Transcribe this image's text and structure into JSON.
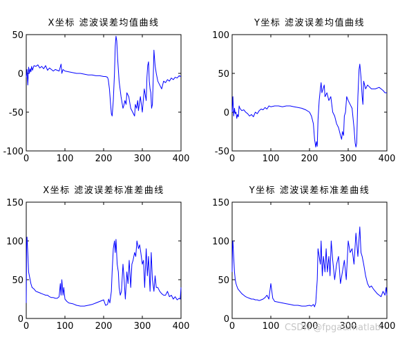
{
  "watermark": "CSDN @fpga&matlab",
  "chart_data": [
    {
      "type": "line",
      "title": "X坐标 滤波误差均值曲线",
      "xlim": [
        0,
        400
      ],
      "ylim": [
        -100,
        50
      ],
      "xticks": [
        "0",
        "100",
        "200",
        "300",
        "400"
      ],
      "yticks": [
        "50",
        "0",
        "-50",
        "-100"
      ],
      "color": "#0000ff",
      "series": [
        {
          "x": [
            0,
            2,
            4,
            6,
            8,
            10,
            12,
            14,
            16,
            20,
            25,
            30,
            35,
            40,
            45,
            50,
            55,
            60,
            65,
            70,
            75,
            80,
            85,
            90,
            92,
            95,
            100,
            110,
            120,
            130,
            140,
            150,
            160,
            170,
            180,
            190,
            200,
            205,
            210,
            212,
            215,
            218,
            220,
            222,
            225,
            228,
            230,
            232,
            234,
            236,
            238,
            240,
            245,
            250,
            252,
            255,
            258,
            260,
            265,
            270,
            275,
            280,
            282,
            285,
            288,
            290,
            295,
            300,
            305,
            310,
            312,
            314,
            316,
            318,
            320,
            322,
            324,
            326,
            328,
            330,
            333,
            336,
            340,
            345,
            350,
            355,
            360,
            365,
            370,
            375,
            380,
            385,
            390,
            395,
            400
          ],
          "y": [
            -5,
            5,
            -15,
            8,
            0,
            6,
            2,
            9,
            4,
            10,
            9,
            11,
            7,
            9,
            6,
            10,
            4,
            7,
            5,
            3,
            5,
            4,
            3,
            12,
            0,
            5,
            3,
            2,
            1,
            0,
            0,
            -1,
            -2,
            -2,
            -3,
            -3,
            -4,
            -4,
            -5,
            -8,
            -20,
            -40,
            -52,
            -55,
            -35,
            0,
            35,
            48,
            42,
            20,
            5,
            -10,
            -30,
            -45,
            -42,
            -35,
            -40,
            -25,
            -30,
            -45,
            -50,
            -55,
            -40,
            -45,
            -35,
            -48,
            -30,
            -50,
            -20,
            -35,
            -5,
            10,
            15,
            -10,
            -20,
            -25,
            -45,
            -40,
            -10,
            30,
            10,
            0,
            -10,
            -15,
            -20,
            -10,
            -12,
            -8,
            -10,
            -6,
            -8,
            -5,
            -6,
            -3,
            -4
          ]
        }
      ]
    },
    {
      "type": "line",
      "title": "Y坐标 滤波误差均值曲线",
      "xlim": [
        0,
        400
      ],
      "ylim": [
        -50,
        100
      ],
      "xticks": [
        "0",
        "100",
        "200",
        "300",
        "400"
      ],
      "yticks": [
        "100",
        "50",
        "0",
        "-50"
      ],
      "color": "#0000ff",
      "series": [
        {
          "x": [
            0,
            2,
            4,
            6,
            8,
            10,
            12,
            14,
            16,
            18,
            20,
            25,
            30,
            35,
            40,
            45,
            50,
            55,
            60,
            65,
            70,
            75,
            80,
            85,
            90,
            95,
            100,
            110,
            120,
            130,
            140,
            150,
            160,
            170,
            180,
            190,
            200,
            205,
            210,
            213,
            216,
            218,
            220,
            222,
            225,
            228,
            230,
            232,
            235,
            238,
            240,
            245,
            250,
            255,
            260,
            265,
            270,
            275,
            280,
            283,
            285,
            288,
            290,
            293,
            296,
            300,
            305,
            310,
            315,
            318,
            320,
            322,
            325,
            328,
            330,
            333,
            336,
            338,
            340,
            345,
            350,
            360,
            370,
            380,
            390,
            395,
            400
          ],
          "y": [
            0,
            20,
            -5,
            5,
            -2,
            0,
            -8,
            -3,
            -6,
            8,
            5,
            2,
            3,
            0,
            -2,
            -5,
            -3,
            -6,
            0,
            -2,
            2,
            4,
            3,
            6,
            4,
            8,
            7,
            8,
            8,
            7,
            8,
            8,
            7,
            6,
            5,
            3,
            0,
            -5,
            -15,
            -35,
            -45,
            -38,
            -44,
            -10,
            15,
            30,
            38,
            25,
            30,
            35,
            20,
            25,
            15,
            20,
            0,
            -5,
            -15,
            -20,
            -30,
            -35,
            -25,
            -30,
            -5,
            0,
            20,
            15,
            10,
            5,
            -20,
            -40,
            -45,
            -40,
            20,
            55,
            62,
            45,
            20,
            10,
            40,
            30,
            35,
            30,
            30,
            32,
            28,
            25,
            25
          ]
        }
      ]
    },
    {
      "type": "line",
      "title": "X坐标 滤波误差标准差曲线",
      "xlim": [
        0,
        400
      ],
      "ylim": [
        0,
        150
      ],
      "xticks": [
        "0",
        "100",
        "200",
        "300",
        "400"
      ],
      "yticks": [
        "150",
        "100",
        "50",
        "0"
      ],
      "color": "#0000ff",
      "series": [
        {
          "x": [
            0,
            1,
            2,
            4,
            6,
            8,
            10,
            12,
            15,
            20,
            25,
            30,
            35,
            40,
            45,
            50,
            55,
            60,
            65,
            70,
            75,
            80,
            85,
            88,
            90,
            92,
            95,
            97,
            100,
            105,
            110,
            120,
            130,
            140,
            150,
            160,
            170,
            180,
            190,
            200,
            205,
            210,
            213,
            216,
            220,
            222,
            225,
            228,
            230,
            232,
            235,
            238,
            240,
            243,
            246,
            250,
            253,
            256,
            260,
            263,
            266,
            270,
            273,
            276,
            280,
            283,
            286,
            290,
            293,
            296,
            300,
            303,
            306,
            310,
            313,
            316,
            320,
            323,
            326,
            330,
            333,
            336,
            340,
            345,
            350,
            355,
            360,
            365,
            370,
            375,
            380,
            385,
            390,
            395,
            398,
            400
          ],
          "y": [
            20,
            100,
            105,
            85,
            60,
            55,
            50,
            45,
            40,
            38,
            35,
            34,
            33,
            32,
            31,
            30,
            30,
            28,
            27,
            27,
            26,
            26,
            28,
            45,
            30,
            50,
            30,
            40,
            25,
            22,
            20,
            19,
            17,
            16,
            16,
            17,
            18,
            20,
            22,
            24,
            17,
            18,
            25,
            20,
            35,
            60,
            90,
            100,
            85,
            102,
            70,
            60,
            40,
            30,
            35,
            70,
            50,
            25,
            60,
            45,
            75,
            40,
            70,
            75,
            85,
            80,
            100,
            90,
            95,
            85,
            70,
            75,
            40,
            90,
            55,
            80,
            35,
            85,
            50,
            35,
            55,
            40,
            40,
            35,
            32,
            30,
            30,
            35,
            28,
            30,
            25,
            28,
            24,
            26,
            25,
            40
          ]
        }
      ]
    },
    {
      "type": "line",
      "title": "Y坐标 滤波误差标准差曲线",
      "xlim": [
        0,
        400
      ],
      "ylim": [
        0,
        150
      ],
      "xticks": [
        "0",
        "100",
        "200",
        "300",
        "400"
      ],
      "yticks": [
        "150",
        "100",
        "50",
        "0"
      ],
      "color": "#0000ff",
      "series": [
        {
          "x": [
            0,
            1,
            2,
            4,
            6,
            8,
            10,
            12,
            15,
            20,
            25,
            30,
            35,
            40,
            45,
            50,
            55,
            60,
            65,
            70,
            75,
            80,
            85,
            90,
            95,
            100,
            105,
            110,
            120,
            130,
            140,
            150,
            160,
            170,
            180,
            190,
            200,
            205,
            210,
            213,
            216,
            220,
            222,
            225,
            228,
            230,
            233,
            236,
            240,
            243,
            246,
            250,
            253,
            256,
            260,
            265,
            270,
            275,
            280,
            285,
            290,
            295,
            300,
            305,
            310,
            315,
            320,
            325,
            330,
            333,
            336,
            340,
            345,
            350,
            355,
            360,
            365,
            370,
            375,
            380,
            385,
            390,
            395,
            398,
            400
          ],
          "y": [
            60,
            95,
            100,
            80,
            60,
            50,
            45,
            42,
            38,
            35,
            32,
            30,
            28,
            27,
            26,
            25,
            25,
            24,
            24,
            23,
            24,
            25,
            27,
            30,
            25,
            45,
            26,
            22,
            21,
            20,
            19,
            18,
            17,
            17,
            16,
            16,
            17,
            16,
            18,
            15,
            20,
            50,
            90,
            80,
            70,
            100,
            55,
            80,
            60,
            90,
            60,
            80,
            55,
            100,
            75,
            50,
            70,
            80,
            45,
            60,
            75,
            50,
            100,
            85,
            90,
            70,
            110,
            80,
            118,
            85,
            80,
            70,
            55,
            45,
            40,
            42,
            38,
            35,
            32,
            30,
            28,
            35,
            30,
            40,
            30
          ]
        }
      ]
    }
  ]
}
